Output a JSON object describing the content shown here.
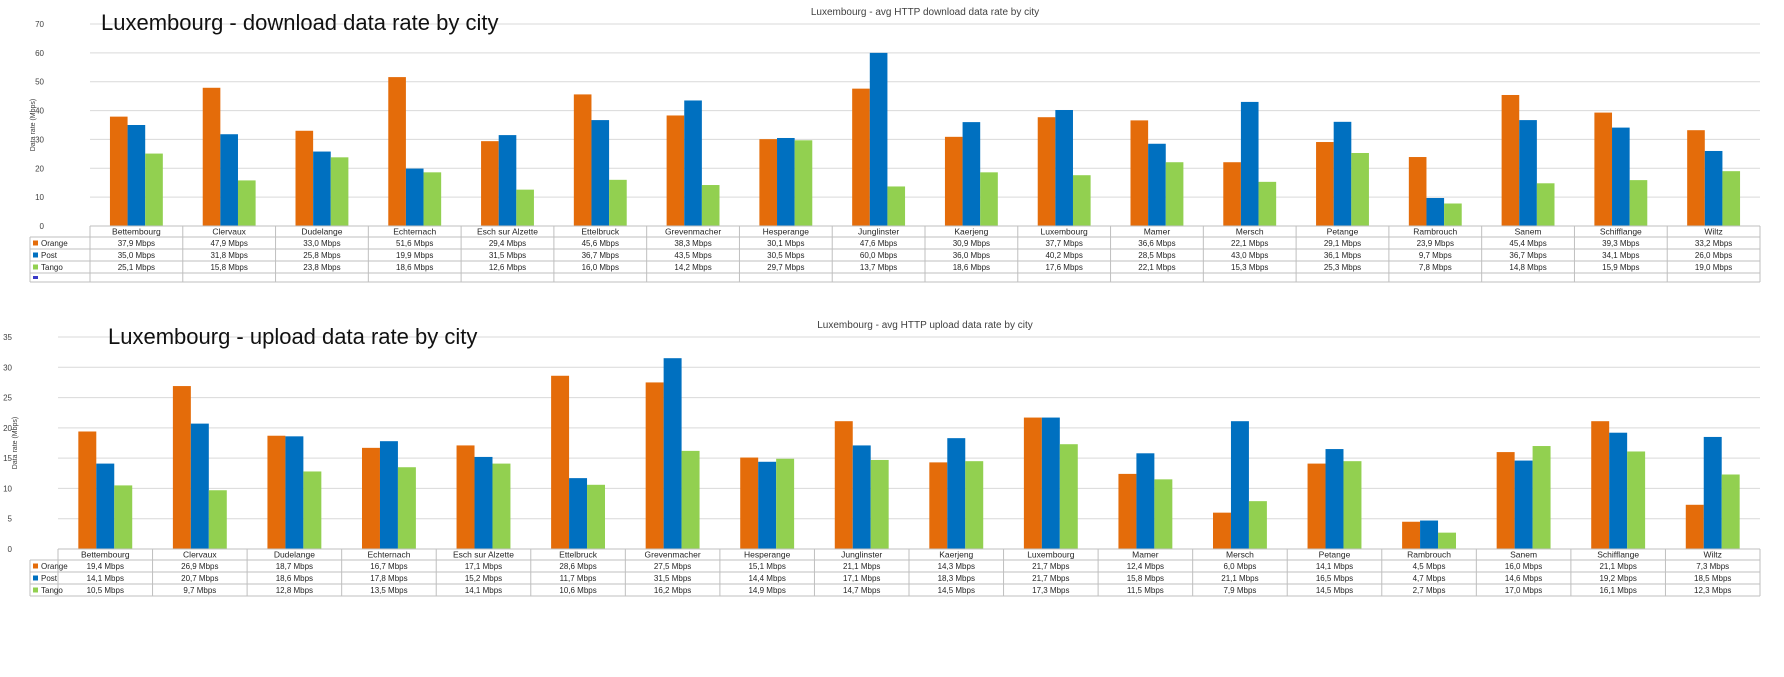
{
  "colors": {
    "Orange": "#E46C0A",
    "Post": "#0070C0",
    "Tango": "#92D050",
    "grid": "#D9D9D9",
    "axis": "#808080",
    "table_line": "#BFBFBF"
  },
  "chart_data": [
    {
      "type": "bar",
      "title": "Luxembourg - avg HTTP  download data rate by city",
      "overlay_title": "Luxembourg  - download data rate by city",
      "ylabel": "Data rate (Mbps)",
      "ylim": [
        0,
        70
      ],
      "yticks": [
        0,
        10,
        20,
        30,
        40,
        50,
        60,
        70
      ],
      "grid": true,
      "legend": "data table (bottom)",
      "categories": [
        "Bettembourg",
        "Clervaux",
        "Dudelange",
        "Echternach",
        "Esch sur Alzette",
        "Ettelbruck",
        "Grevenmacher",
        "Hesperange",
        "Junglinster",
        "Kaerjeng",
        "Luxembourg",
        "Mamer",
        "Mersch",
        "Petange",
        "Rambrouch",
        "Sanem",
        "Schifflange",
        "Wiltz"
      ],
      "series": [
        {
          "name": "Orange",
          "values": [
            37.9,
            47.9,
            33.0,
            51.6,
            29.4,
            45.6,
            38.3,
            30.1,
            47.6,
            30.9,
            37.7,
            36.6,
            22.1,
            29.1,
            23.9,
            45.4,
            39.3,
            33.2
          ],
          "labels": [
            "37,9 Mbps",
            "47,9 Mbps",
            "33,0 Mbps",
            "51,6 Mbps",
            "29,4 Mbps",
            "45,6 Mbps",
            "38,3 Mbps",
            "30,1 Mbps",
            "47,6 Mbps",
            "30,9 Mbps",
            "37,7 Mbps",
            "36,6 Mbps",
            "22,1 Mbps",
            "29,1 Mbps",
            "23,9 Mbps",
            "45,4 Mbps",
            "39,3 Mbps",
            "33,2 Mbps"
          ]
        },
        {
          "name": "Post",
          "values": [
            35.0,
            31.8,
            25.8,
            19.9,
            31.5,
            36.7,
            43.5,
            30.5,
            60.0,
            36.0,
            40.2,
            28.5,
            43.0,
            36.1,
            9.7,
            36.7,
            34.1,
            26.0
          ],
          "labels": [
            "35,0 Mbps",
            "31,8 Mbps",
            "25,8 Mbps",
            "19,9 Mbps",
            "31,5 Mbps",
            "36,7 Mbps",
            "43,5 Mbps",
            "30,5 Mbps",
            "60,0 Mbps",
            "36,0 Mbps",
            "40,2 Mbps",
            "28,5 Mbps",
            "43,0 Mbps",
            "36,1 Mbps",
            "9,7 Mbps",
            "36,7 Mbps",
            "34,1 Mbps",
            "26,0 Mbps"
          ]
        },
        {
          "name": "Tango",
          "values": [
            25.1,
            15.8,
            23.8,
            18.6,
            12.6,
            16.0,
            14.2,
            29.7,
            13.7,
            18.6,
            17.6,
            22.1,
            15.3,
            25.3,
            7.8,
            14.8,
            15.9,
            19.0
          ],
          "labels": [
            "25,1 Mbps",
            "15,8 Mbps",
            "23,8 Mbps",
            "18,6 Mbps",
            "12,6 Mbps",
            "16,0 Mbps",
            "14,2 Mbps",
            "29,7 Mbps",
            "13,7 Mbps",
            "18,6 Mbps",
            "17,6 Mbps",
            "22,1 Mbps",
            "15,3 Mbps",
            "25,3 Mbps",
            "7,8 Mbps",
            "14,8 Mbps",
            "15,9 Mbps",
            "19,0 Mbps"
          ]
        }
      ]
    },
    {
      "type": "bar",
      "title": "Luxembourg - avg HTTP upload data rate by city",
      "overlay_title": "Luxembourg -  upload data rate by city",
      "ylabel": "Data rate (Mbps)",
      "ylim": [
        0,
        35
      ],
      "yticks": [
        0,
        5,
        10,
        15,
        20,
        25,
        30,
        35
      ],
      "grid": true,
      "legend": "data table (bottom)",
      "categories": [
        "Bettembourg",
        "Clervaux",
        "Dudelange",
        "Echternach",
        "Esch sur Alzette",
        "Ettelbruck",
        "Grevenmacher",
        "Hesperange",
        "Junglinster",
        "Kaerjeng",
        "Luxembourg",
        "Mamer",
        "Mersch",
        "Petange",
        "Rambrouch",
        "Sanem",
        "Schifflange",
        "Wiltz"
      ],
      "series": [
        {
          "name": "Orange",
          "values": [
            19.4,
            26.9,
            18.7,
            16.7,
            17.1,
            28.6,
            27.5,
            15.1,
            21.1,
            14.3,
            21.7,
            12.4,
            6.0,
            14.1,
            4.5,
            16.0,
            21.1,
            7.3
          ],
          "labels": [
            "19,4 Mbps",
            "26,9 Mbps",
            "18,7 Mbps",
            "16,7 Mbps",
            "17,1 Mbps",
            "28,6 Mbps",
            "27,5 Mbps",
            "15,1 Mbps",
            "21,1 Mbps",
            "14,3 Mbps",
            "21,7 Mbps",
            "12,4 Mbps",
            "6,0 Mbps",
            "14,1 Mbps",
            "4,5 Mbps",
            "16,0 Mbps",
            "21,1 Mbps",
            "7,3 Mbps"
          ]
        },
        {
          "name": "Post",
          "values": [
            14.1,
            20.7,
            18.6,
            17.8,
            15.2,
            11.7,
            31.5,
            14.4,
            17.1,
            18.3,
            21.7,
            15.8,
            21.1,
            16.5,
            4.7,
            14.6,
            19.2,
            18.5
          ],
          "labels": [
            "14,1 Mbps",
            "20,7 Mbps",
            "18,6 Mbps",
            "17,8 Mbps",
            "15,2 Mbps",
            "11,7 Mbps",
            "31,5 Mbps",
            "14,4 Mbps",
            "17,1 Mbps",
            "18,3 Mbps",
            "21,7 Mbps",
            "15,8 Mbps",
            "21,1 Mbps",
            "16,5 Mbps",
            "4,7 Mbps",
            "14,6 Mbps",
            "19,2 Mbps",
            "18,5 Mbps"
          ]
        },
        {
          "name": "Tango",
          "values": [
            10.5,
            9.7,
            12.8,
            13.5,
            14.1,
            10.6,
            16.2,
            14.9,
            14.7,
            14.5,
            17.3,
            11.5,
            7.9,
            14.5,
            2.7,
            17.0,
            16.1,
            12.3
          ],
          "labels": [
            "10,5 Mbps",
            "9,7 Mbps",
            "12,8 Mbps",
            "13,5 Mbps",
            "14,1 Mbps",
            "10,6 Mbps",
            "16,2 Mbps",
            "14,9 Mbps",
            "14,7 Mbps",
            "14,5 Mbps",
            "17,3 Mbps",
            "11,5 Mbps",
            "7,9 Mbps",
            "14,5 Mbps",
            "2,7 Mbps",
            "17,0 Mbps",
            "16,1 Mbps",
            "12,3 Mbps"
          ]
        }
      ]
    }
  ]
}
